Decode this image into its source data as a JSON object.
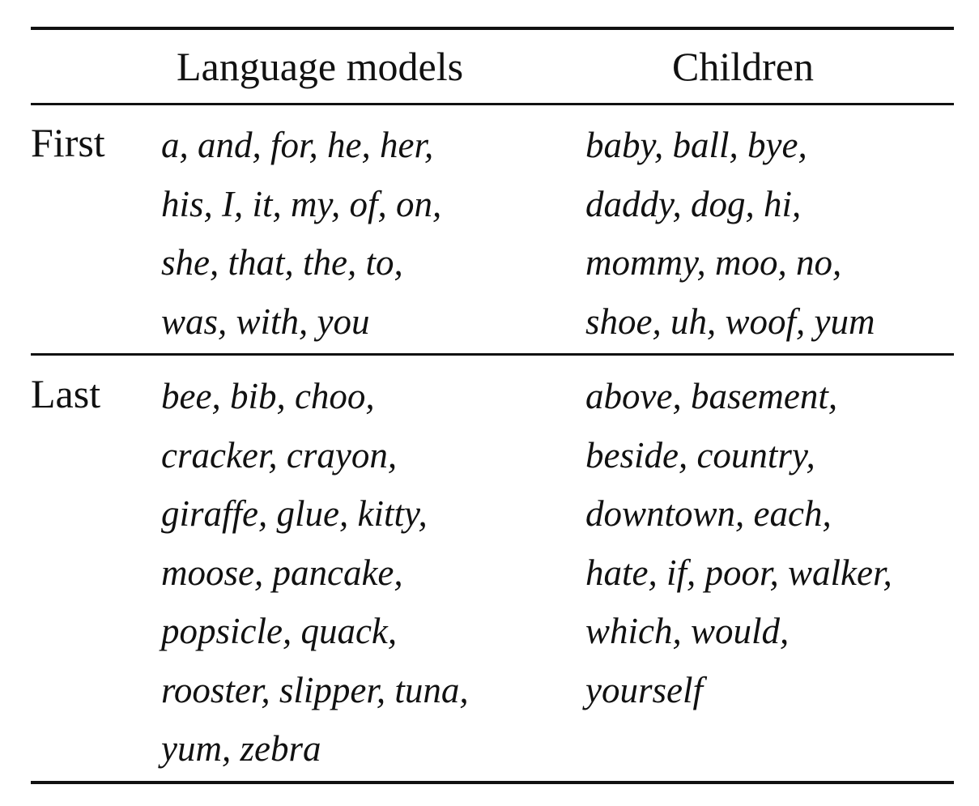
{
  "table": {
    "headers": {
      "language_models": "Language models",
      "children": "Children"
    },
    "rows": [
      {
        "label": "First",
        "language_models": [
          "a, and, for, he, her,",
          "his, I, it, my, of, on,",
          "she, that, the, to,",
          "was, with, you"
        ],
        "children": [
          "baby, ball, bye,",
          "daddy, dog, hi,",
          "mommy, moo, no,",
          "shoe, uh, woof, yum"
        ]
      },
      {
        "label": "Last",
        "language_models": [
          "bee, bib, choo,",
          "cracker, crayon,",
          "giraffe, glue, kitty,",
          "moose, pancake,",
          "popsicle, quack,",
          "rooster, slipper, tuna,",
          "yum, zebra"
        ],
        "children": [
          "above, basement,",
          "beside, country,",
          "downtown, each,",
          "hate, if, poor, walker,",
          "which, would,",
          "yourself"
        ]
      }
    ]
  }
}
